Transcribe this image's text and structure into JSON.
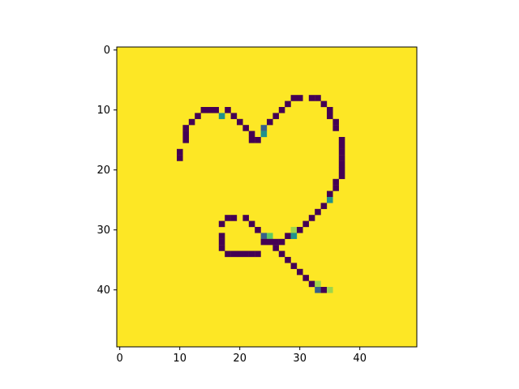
{
  "chart_data": {
    "type": "heatmap",
    "title": "",
    "xlabel": "",
    "ylabel": "",
    "grid": false,
    "legend": "none",
    "rows": 50,
    "cols": 50,
    "xlim": [
      -0.5,
      49.5
    ],
    "ylim": [
      49.5,
      -0.5
    ],
    "xticks": [
      0,
      10,
      20,
      30,
      40
    ],
    "yticks": [
      0,
      10,
      20,
      30,
      40
    ],
    "colormap": "viridis",
    "background_value": 1.0,
    "colors": {
      "stroke": "#440154",
      "background": "#fde725",
      "mid_teal": "#21918c",
      "mid_blue": "#3b528b",
      "light_green": "#b5de2b"
    },
    "cells": [
      {
        "r": 8,
        "c": 29,
        "v": 0
      },
      {
        "r": 8,
        "c": 30,
        "v": 0
      },
      {
        "r": 8,
        "c": 32,
        "v": 0
      },
      {
        "r": 8,
        "c": 33,
        "v": 0
      },
      {
        "r": 9,
        "c": 28,
        "v": 0
      },
      {
        "r": 9,
        "c": 34,
        "v": 0
      },
      {
        "r": 10,
        "c": 14,
        "v": 0
      },
      {
        "r": 10,
        "c": 15,
        "v": 0
      },
      {
        "r": 10,
        "c": 16,
        "v": 0
      },
      {
        "r": 10,
        "c": 18,
        "v": 0
      },
      {
        "r": 10,
        "c": 27,
        "v": 0
      },
      {
        "r": 10,
        "c": 35,
        "v": 0
      },
      {
        "r": 11,
        "c": 13,
        "v": 0
      },
      {
        "r": 11,
        "c": 17,
        "v": 0.5
      },
      {
        "r": 11,
        "c": 19,
        "v": 0
      },
      {
        "r": 11,
        "c": 26,
        "v": 0
      },
      {
        "r": 11,
        "c": 35,
        "v": 0
      },
      {
        "r": 12,
        "c": 12,
        "v": 0
      },
      {
        "r": 12,
        "c": 20,
        "v": 0
      },
      {
        "r": 12,
        "c": 25,
        "v": 0
      },
      {
        "r": 12,
        "c": 36,
        "v": 0
      },
      {
        "r": 13,
        "c": 11,
        "v": 0
      },
      {
        "r": 13,
        "c": 21,
        "v": 0
      },
      {
        "r": 13,
        "c": 24,
        "v": 0.3
      },
      {
        "r": 13,
        "c": 36,
        "v": 0
      },
      {
        "r": 14,
        "c": 11,
        "v": 0
      },
      {
        "r": 14,
        "c": 22,
        "v": 0
      },
      {
        "r": 14,
        "c": 24,
        "v": 0.5
      },
      {
        "r": 15,
        "c": 11,
        "v": 0
      },
      {
        "r": 15,
        "c": 22,
        "v": 0
      },
      {
        "r": 15,
        "c": 23,
        "v": 0
      },
      {
        "r": 15,
        "c": 37,
        "v": 0
      },
      {
        "r": 16,
        "c": 37,
        "v": 0
      },
      {
        "r": 17,
        "c": 10,
        "v": 0
      },
      {
        "r": 17,
        "c": 37,
        "v": 0
      },
      {
        "r": 18,
        "c": 10,
        "v": 0
      },
      {
        "r": 18,
        "c": 37,
        "v": 0
      },
      {
        "r": 19,
        "c": 37,
        "v": 0
      },
      {
        "r": 20,
        "c": 37,
        "v": 0
      },
      {
        "r": 21,
        "c": 37,
        "v": 0
      },
      {
        "r": 22,
        "c": 36,
        "v": 0
      },
      {
        "r": 23,
        "c": 36,
        "v": 0
      },
      {
        "r": 24,
        "c": 35,
        "v": 0
      },
      {
        "r": 25,
        "c": 35,
        "v": 0.5
      },
      {
        "r": 26,
        "c": 34,
        "v": 0
      },
      {
        "r": 27,
        "c": 33,
        "v": 0
      },
      {
        "r": 28,
        "c": 18,
        "v": 0
      },
      {
        "r": 28,
        "c": 19,
        "v": 0
      },
      {
        "r": 28,
        "c": 21,
        "v": 0
      },
      {
        "r": 28,
        "c": 32,
        "v": 0
      },
      {
        "r": 29,
        "c": 17,
        "v": 0
      },
      {
        "r": 29,
        "c": 22,
        "v": 0
      },
      {
        "r": 29,
        "c": 31,
        "v": 0
      },
      {
        "r": 30,
        "c": 23,
        "v": 0
      },
      {
        "r": 30,
        "c": 29,
        "v": 0.85
      },
      {
        "r": 30,
        "c": 30,
        "v": 0
      },
      {
        "r": 31,
        "c": 17,
        "v": 0
      },
      {
        "r": 31,
        "c": 24,
        "v": 0.3
      },
      {
        "r": 31,
        "c": 25,
        "v": 0.75
      },
      {
        "r": 31,
        "c": 28,
        "v": 0
      },
      {
        "r": 31,
        "c": 29,
        "v": 0.5
      },
      {
        "r": 32,
        "c": 17,
        "v": 0
      },
      {
        "r": 32,
        "c": 24,
        "v": 0
      },
      {
        "r": 32,
        "c": 25,
        "v": 0
      },
      {
        "r": 32,
        "c": 26,
        "v": 0
      },
      {
        "r": 32,
        "c": 27,
        "v": 0
      },
      {
        "r": 33,
        "c": 17,
        "v": 0
      },
      {
        "r": 33,
        "c": 26,
        "v": 0
      },
      {
        "r": 34,
        "c": 18,
        "v": 0
      },
      {
        "r": 34,
        "c": 19,
        "v": 0
      },
      {
        "r": 34,
        "c": 20,
        "v": 0
      },
      {
        "r": 34,
        "c": 21,
        "v": 0
      },
      {
        "r": 34,
        "c": 22,
        "v": 0
      },
      {
        "r": 34,
        "c": 23,
        "v": 0
      },
      {
        "r": 34,
        "c": 27,
        "v": 0
      },
      {
        "r": 35,
        "c": 28,
        "v": 0
      },
      {
        "r": 36,
        "c": 29,
        "v": 0
      },
      {
        "r": 37,
        "c": 30,
        "v": 0
      },
      {
        "r": 38,
        "c": 31,
        "v": 0
      },
      {
        "r": 39,
        "c": 32,
        "v": 0
      },
      {
        "r": 39,
        "c": 33,
        "v": 0.85
      },
      {
        "r": 40,
        "c": 33,
        "v": 0.3
      },
      {
        "r": 40,
        "c": 34,
        "v": 0
      },
      {
        "r": 40,
        "c": 35,
        "v": 0.85
      }
    ]
  }
}
